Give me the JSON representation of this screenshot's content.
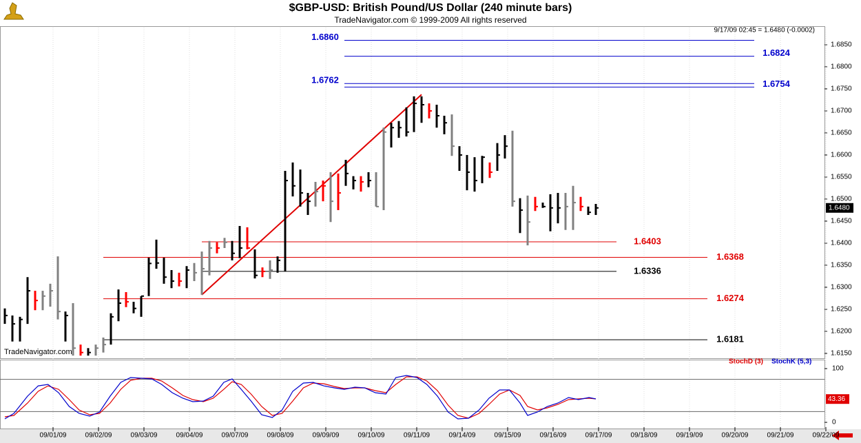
{
  "chart_data": {
    "type": "ohlc",
    "title": "$GBP-USD:  British Pound/US Dollar  (240 minute bars)",
    "subtitle": "TradeNavigator.com © 1999-2009 All rights reserved",
    "info": "9/17/09 02:45 = 1.6480 (-0.0002)",
    "watermark": "TradeNavigator.com",
    "ylim": [
      1.6139,
      1.6889
    ],
    "yticks": [
      {
        "value": 1.615,
        "label": "1.6150"
      },
      {
        "value": 1.62,
        "label": "1.6200"
      },
      {
        "value": 1.625,
        "label": "1.6250"
      },
      {
        "value": 1.63,
        "label": "1.6300"
      },
      {
        "value": 1.635,
        "label": "1.6350"
      },
      {
        "value": 1.64,
        "label": "1.6400"
      },
      {
        "value": 1.645,
        "label": "1.6450"
      },
      {
        "value": 1.65,
        "label": "1.6500"
      },
      {
        "value": 1.655,
        "label": "1.6550"
      },
      {
        "value": 1.66,
        "label": "1.6600"
      },
      {
        "value": 1.665,
        "label": "1.6650"
      },
      {
        "value": 1.67,
        "label": "1.6700"
      },
      {
        "value": 1.675,
        "label": "1.6750"
      },
      {
        "value": 1.68,
        "label": "1.6800"
      },
      {
        "value": 1.685,
        "label": "1.6850"
      }
    ],
    "categories": [
      "09/01/09",
      "09/02/09",
      "09/03/09",
      "09/04/09",
      "09/07/09",
      "09/08/09",
      "09/09/09",
      "09/10/09",
      "09/11/09",
      "09/14/09",
      "09/15/09",
      "09/16/09",
      "09/17/09",
      "09/18/09",
      "09/19/09",
      "09/20/09",
      "09/21/09",
      "09/22/09"
    ],
    "high": [
      1.6252,
      1.6236,
      1.6233,
      1.6323,
      1.6292,
      1.6292,
      1.6308,
      1.637,
      1.6245,
      1.6264,
      1.617,
      1.6162,
      1.617,
      1.6186,
      1.6241,
      1.6295,
      1.6289,
      1.6267,
      1.628,
      1.6367,
      1.6408,
      1.6367,
      1.6339,
      1.6333,
      1.6348,
      1.6355,
      1.6381,
      1.6405,
      1.6402,
      1.6412,
      1.6405,
      1.6439,
      1.6436,
      1.6386,
      1.6345,
      1.6361,
      1.637,
      1.6564,
      1.6583,
      1.6567,
      1.6514,
      1.6539,
      1.6542,
      1.6561,
      1.6558,
      1.6589,
      1.6552,
      1.6552,
      1.6561,
      1.6561,
      1.6662,
      1.6673,
      1.6677,
      1.6708,
      1.6733,
      1.6733,
      1.6717,
      1.6714,
      1.6689,
      1.6692,
      1.662,
      1.66,
      1.6595,
      1.6598,
      1.6583,
      1.6627,
      1.6645,
      1.6655,
      1.6502,
      1.6508,
      1.6505,
      1.6492,
      1.6511,
      1.6514,
      1.6514,
      1.653,
      1.6505,
      1.6483,
      1.6489
    ],
    "low": [
      1.6217,
      1.6177,
      1.6177,
      1.6217,
      1.6248,
      1.6248,
      1.6256,
      1.6227,
      1.6177,
      1.6145,
      1.6145,
      1.6145,
      1.6145,
      1.6152,
      1.617,
      1.6223,
      1.6255,
      1.6241,
      1.6233,
      1.628,
      1.6342,
      1.6308,
      1.6298,
      1.6302,
      1.6298,
      1.6314,
      1.6283,
      1.6327,
      1.6377,
      1.6389,
      1.6361,
      1.6366,
      1.6386,
      1.632,
      1.6323,
      1.6319,
      1.6333,
      1.6336,
      1.6506,
      1.6483,
      1.6464,
      1.6483,
      1.6495,
      1.6448,
      1.6475,
      1.653,
      1.6522,
      1.6517,
      1.6527,
      1.6483,
      1.6475,
      1.6617,
      1.6639,
      1.6642,
      1.6652,
      1.6673,
      1.6683,
      1.6662,
      1.6647,
      1.6598,
      1.6564,
      1.652,
      1.6517,
      1.6536,
      1.6548,
      1.6564,
      1.6592,
      1.6483,
      1.6423,
      1.6395,
      1.6473,
      1.648,
      1.6427,
      1.6445,
      1.643,
      1.643,
      1.6473,
      1.6464,
      1.6464
    ],
    "close": [
      1.6236,
      1.6217,
      1.6227,
      1.6292,
      1.627,
      1.628,
      1.6292,
      1.6245,
      1.6236,
      1.6162,
      1.6152,
      1.6152,
      1.6162,
      1.617,
      1.6233,
      1.6264,
      1.6267,
      1.6252,
      1.628,
      1.6354,
      1.6355,
      1.6323,
      1.6314,
      1.6314,
      1.6339,
      1.6333,
      1.6342,
      1.6389,
      1.6389,
      1.6402,
      1.6377,
      1.6389,
      1.6389,
      1.6327,
      1.6336,
      1.6339,
      1.6361,
      1.6542,
      1.653,
      1.6514,
      1.6495,
      1.6517,
      1.653,
      1.6495,
      1.6514,
      1.6558,
      1.6542,
      1.6539,
      1.6542,
      1.6483,
      1.6652,
      1.6662,
      1.6662,
      1.6652,
      1.6717,
      1.6714,
      1.67,
      1.6689,
      1.6673,
      1.662,
      1.66,
      1.6561,
      1.6542,
      1.6595,
      1.6561,
      1.66,
      1.662,
      1.6495,
      1.6475,
      1.6448,
      1.6483,
      1.6483,
      1.648,
      1.648,
      1.6483,
      1.6492,
      1.6483,
      1.647,
      1.648
    ],
    "colors": [
      "black",
      "black",
      "black",
      "black",
      "red",
      "gray",
      "gray",
      "gray",
      "black",
      "gray",
      "red",
      "black",
      "gray",
      "gray",
      "black",
      "black",
      "red",
      "black",
      "black",
      "black",
      "black",
      "black",
      "black",
      "red",
      "black",
      "gray",
      "gray",
      "gray",
      "red",
      "gray",
      "black",
      "black",
      "red",
      "black",
      "red",
      "gray",
      "black",
      "black",
      "black",
      "black",
      "black",
      "gray",
      "red",
      "gray",
      "red",
      "black",
      "black",
      "red",
      "black",
      "gray",
      "gray",
      "black",
      "black",
      "black",
      "black",
      "black",
      "red",
      "black",
      "black",
      "gray",
      "black",
      "black",
      "black",
      "black",
      "red",
      "black",
      "black",
      "gray",
      "black",
      "gray",
      "red",
      "black",
      "black",
      "black",
      "gray",
      "gray",
      "red",
      "black",
      "black"
    ],
    "trendline": {
      "x": [
        26,
        55
      ],
      "y": [
        1.6283,
        1.6737
      ],
      "color": "#e00000"
    },
    "levels": [
      {
        "value": 1.686,
        "label": "1.6860",
        "color": "#0000cc"
      },
      {
        "value": 1.6824,
        "label": "1.6824",
        "color": "#0000cc"
      },
      {
        "value": 1.6762,
        "label": "1.6762",
        "color": "#0000cc"
      },
      {
        "value": 1.6754,
        "label": "1.6754",
        "color": "#0000cc"
      },
      {
        "value": 1.6403,
        "label": "1.6403",
        "color": "#e00000"
      },
      {
        "value": 1.6368,
        "label": "1.6368",
        "color": "#e00000"
      },
      {
        "value": 1.6336,
        "label": "1.6336",
        "color": "#000000"
      },
      {
        "value": 1.6274,
        "label": "1.6274",
        "color": "#e00000"
      },
      {
        "value": 1.6181,
        "label": "1.6181",
        "color": "#000000"
      }
    ],
    "last_price": {
      "value": 1.648,
      "label": "1.6480"
    },
    "stochastic": {
      "ylim": [
        -12.8,
        116.7
      ],
      "yticks": [
        0,
        100
      ],
      "levels": [
        20,
        80
      ],
      "last_value": 43.36,
      "x": [
        0,
        1.2,
        3.0,
        4.4,
        5.7,
        7.1,
        8.5,
        9.8,
        11.2,
        12.5,
        13.9,
        15.3,
        16.6,
        18.0,
        19.4,
        20.7,
        22.1,
        23.5,
        24.8,
        26.2,
        27.5,
        28.9,
        30.0,
        31.2,
        32.5,
        33.9,
        35.3,
        36.6,
        38.0,
        39.4,
        40.7,
        42.1,
        43.5,
        44.8,
        46.2,
        47.5,
        48.9,
        50.3,
        51.6,
        53.0,
        54.4,
        55.7,
        57.1,
        58.5,
        59.8,
        61.2,
        62.6,
        63.9,
        65.3,
        66.6,
        68.0,
        69.0,
        70.3,
        71.6,
        73.0,
        74.4,
        75.7,
        77.1,
        78.0
      ],
      "series": [
        {
          "name": "StochD (3)",
          "color": "#e00000",
          "values": [
            10.3,
            12.8,
            35.9,
            57.7,
            67.9,
            61.5,
            42.3,
            23.1,
            14.1,
            16.7,
            35.9,
            61.5,
            78.2,
            82.1,
            82.1,
            76.9,
            64.1,
            50.0,
            42.3,
            38.5,
            44.9,
            61.5,
            75.6,
            70.5,
            52.6,
            29.5,
            12.8,
            16.7,
            39.7,
            64.1,
            73.1,
            71.8,
            66.7,
            62.8,
            64.1,
            64.1,
            59.0,
            55.1,
            70.5,
            84.6,
            84.6,
            76.9,
            59.0,
            32.1,
            12.8,
            7.7,
            16.7,
            33.3,
            52.6,
            60.3,
            50.0,
            29.5,
            23.1,
            26.9,
            33.3,
            42.3,
            43.6,
            44.9,
            43.6
          ]
        },
        {
          "name": "StochK (5,3)",
          "color": "#0000cc",
          "values": [
            6.4,
            16.7,
            48.7,
            67.9,
            70.5,
            55.1,
            29.5,
            16.7,
            11.5,
            19.2,
            48.7,
            74.4,
            83.3,
            82.1,
            80.8,
            70.5,
            55.1,
            44.9,
            38.5,
            39.7,
            48.7,
            74.4,
            80.8,
            61.5,
            39.7,
            14.1,
            9.0,
            23.1,
            57.7,
            73.1,
            74.4,
            67.9,
            64.1,
            61.5,
            65.4,
            64.1,
            55.1,
            52.6,
            83.3,
            87.2,
            83.3,
            70.5,
            48.7,
            19.2,
            6.4,
            7.7,
            23.1,
            44.9,
            60.3,
            60.3,
            35.9,
            12.8,
            19.2,
            29.5,
            35.9,
            46.2,
            42.3,
            46.2,
            43.6
          ]
        }
      ]
    }
  }
}
